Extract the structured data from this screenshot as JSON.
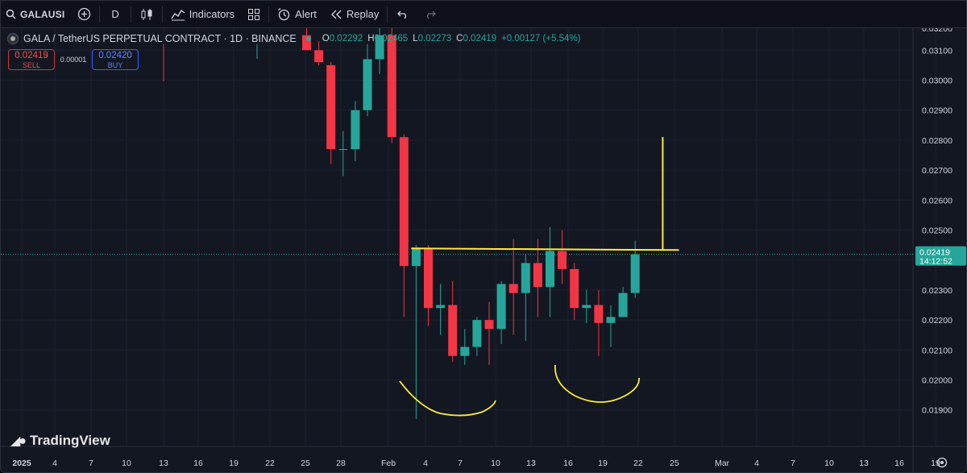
{
  "toolbar": {
    "symbol": "GALAUSI",
    "interval": "D",
    "indicators_label": "Indicators",
    "alert_label": "Alert",
    "replay_label": "Replay"
  },
  "legend": {
    "title": "GALA / TetherUS PERPETUAL CONTRACT · 1D · BINANCE",
    "o_label": "O",
    "o": "0.02292",
    "h_label": "H",
    "h": "0.02465",
    "l_label": "L",
    "l": "0.02273",
    "c_label": "C",
    "c": "0.02419",
    "change": "+0.00127 (+5.54%)"
  },
  "trade": {
    "sell_price": "0.02419",
    "sell_label": "SELL",
    "spread": "0.00001",
    "buy_price": "0.02420",
    "buy_label": "BUY"
  },
  "price_label": {
    "price": "0.02419",
    "countdown": "14:12:52"
  },
  "logo_text": "TradingView",
  "colors": {
    "up": "#26a69a",
    "down": "#f23645",
    "drawing": "#ffeb3b",
    "background": "#131722"
  },
  "chart_data": {
    "type": "candlestick",
    "y_axis_ticks": [
      "0.03100",
      "0.03000",
      "0.02900",
      "0.02800",
      "0.02700",
      "0.02600",
      "0.02500",
      "0.02400",
      "0.02300",
      "0.02200",
      "0.02100",
      "0.02000",
      "0.01900"
    ],
    "y_axis_partial_top": "0.03200",
    "x_axis_ticks": [
      "2025",
      "4",
      "7",
      "10",
      "13",
      "16",
      "19",
      "22",
      "25",
      "28",
      "Feb",
      "4",
      "7",
      "10",
      "13",
      "16",
      "19",
      "22",
      "25",
      "Mar",
      "4",
      "7",
      "10",
      "13",
      "16",
      "19"
    ],
    "candles": [
      {
        "date": "Jan 25",
        "o": 0.0315,
        "h": 0.0322,
        "l": 0.031,
        "c": 0.031
      },
      {
        "date": "Jan 26",
        "o": 0.031,
        "h": 0.0313,
        "l": 0.0305,
        "c": 0.0306
      },
      {
        "date": "Jan 27",
        "o": 0.0305,
        "h": 0.0306,
        "l": 0.0272,
        "c": 0.0277
      },
      {
        "date": "Jan 28",
        "o": 0.0277,
        "h": 0.0283,
        "l": 0.0268,
        "c": 0.0277
      },
      {
        "date": "Jan 29",
        "o": 0.0277,
        "h": 0.0293,
        "l": 0.0273,
        "c": 0.029
      },
      {
        "date": "Jan 30",
        "o": 0.029,
        "h": 0.0312,
        "l": 0.0288,
        "c": 0.0307
      },
      {
        "date": "Jan 31",
        "o": 0.0307,
        "h": 0.0322,
        "l": 0.0302,
        "c": 0.0315
      },
      {
        "date": "Feb 1",
        "o": 0.0315,
        "h": 0.0322,
        "l": 0.0279,
        "c": 0.0281
      },
      {
        "date": "Feb 2",
        "o": 0.0281,
        "h": 0.0282,
        "l": 0.0221,
        "c": 0.0238
      },
      {
        "date": "Feb 3",
        "o": 0.0238,
        "h": 0.0245,
        "l": 0.0187,
        "c": 0.0244
      },
      {
        "date": "Feb 4",
        "o": 0.0244,
        "h": 0.0245,
        "l": 0.0218,
        "c": 0.0224
      },
      {
        "date": "Feb 5",
        "o": 0.0224,
        "h": 0.0232,
        "l": 0.0215,
        "c": 0.0225
      },
      {
        "date": "Feb 6",
        "o": 0.0225,
        "h": 0.0233,
        "l": 0.0206,
        "c": 0.0208
      },
      {
        "date": "Feb 7",
        "o": 0.0208,
        "h": 0.0217,
        "l": 0.0205,
        "c": 0.0211
      },
      {
        "date": "Feb 8",
        "o": 0.0211,
        "h": 0.0221,
        "l": 0.0208,
        "c": 0.022
      },
      {
        "date": "Feb 9",
        "o": 0.022,
        "h": 0.0226,
        "l": 0.0205,
        "c": 0.0217
      },
      {
        "date": "Feb 10",
        "o": 0.0217,
        "h": 0.0233,
        "l": 0.0212,
        "c": 0.0232
      },
      {
        "date": "Feb 11",
        "o": 0.0232,
        "h": 0.0247,
        "l": 0.0215,
        "c": 0.0229
      },
      {
        "date": "Feb 12",
        "o": 0.0229,
        "h": 0.0242,
        "l": 0.0213,
        "c": 0.0239
      },
      {
        "date": "Feb 13",
        "o": 0.0239,
        "h": 0.0247,
        "l": 0.0221,
        "c": 0.0231
      },
      {
        "date": "Feb 14",
        "o": 0.0231,
        "h": 0.0251,
        "l": 0.0221,
        "c": 0.0243
      },
      {
        "date": "Feb 15",
        "o": 0.0243,
        "h": 0.025,
        "l": 0.0232,
        "c": 0.0237
      },
      {
        "date": "Feb 16",
        "o": 0.0237,
        "h": 0.0239,
        "l": 0.022,
        "c": 0.0224
      },
      {
        "date": "Feb 17",
        "o": 0.0224,
        "h": 0.023,
        "l": 0.0219,
        "c": 0.0225
      },
      {
        "date": "Feb 18",
        "o": 0.0225,
        "h": 0.023,
        "l": 0.0208,
        "c": 0.0219
      },
      {
        "date": "Feb 19",
        "o": 0.0219,
        "h": 0.0225,
        "l": 0.0211,
        "c": 0.0221
      },
      {
        "date": "Feb 20",
        "o": 0.0221,
        "h": 0.0231,
        "l": 0.0221,
        "c": 0.0229
      },
      {
        "date": "Feb 21",
        "o": 0.0229,
        "h": 0.02465,
        "l": 0.02273,
        "c": 0.02419
      }
    ],
    "last_price": 0.02419,
    "drawings": [
      {
        "type": "horizontal-line",
        "y": 0.02436,
        "from": "Feb 3",
        "to": "Feb 24"
      },
      {
        "type": "vertical-line",
        "x": "Feb 23",
        "from": 0.02436,
        "to": 0.0281
      },
      {
        "type": "curve",
        "name": "left-shoulder"
      },
      {
        "type": "curve",
        "name": "right-shoulder"
      }
    ]
  }
}
